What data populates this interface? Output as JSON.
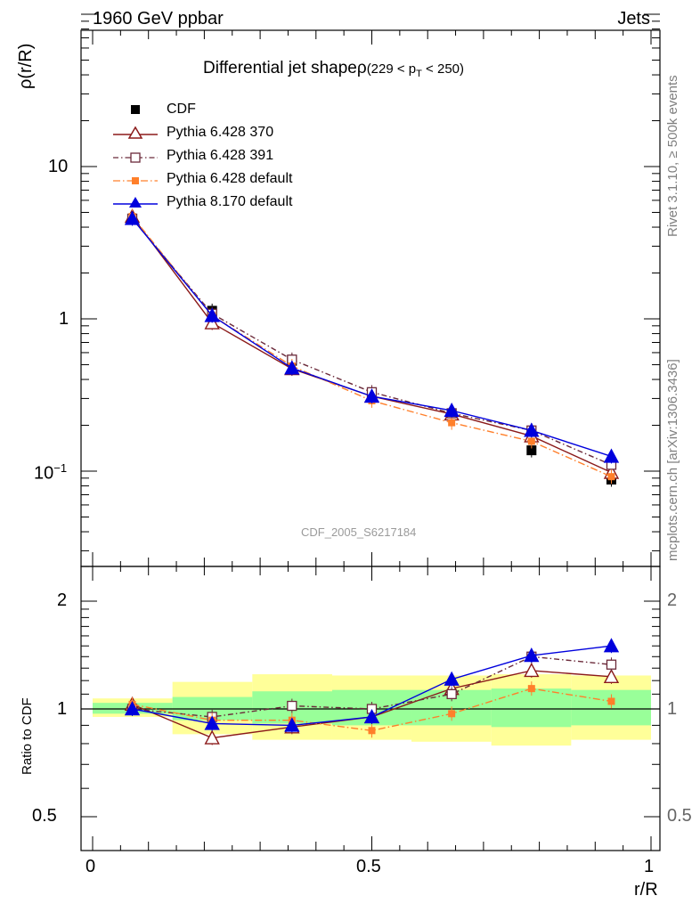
{
  "header": {
    "energy_label": "1960 GeV ppbar",
    "process_label": "Jets"
  },
  "side_labels": {
    "rivet": "Rivet 3.1.10, ≥ 500k events",
    "mcplots": "mcplots.cern.ch [arXiv:1306.3436]"
  },
  "main_title": {
    "prefix": "Differential jet shapeρ",
    "range_open": "(229 < p",
    "range_sub": "T",
    "range_close": " < 250)"
  },
  "analysis_id": "CDF_2005_S6217184",
  "axes": {
    "upper_ylabel": "ρ(r/R)",
    "lower_ylabel": "Ratio to CDF",
    "xlabel": "r/R",
    "upper_ticks": [
      "10",
      "1"
    ],
    "upper_tick_neg": {
      "base": "10",
      "exp": "−1"
    },
    "lower_ticks_left": [
      "2",
      "1",
      "0.5"
    ],
    "lower_ticks_right": [
      "2",
      "1",
      "0.5"
    ],
    "x_ticks": [
      "0",
      "0.5",
      "1"
    ]
  },
  "colors": {
    "cdf": "#000000",
    "py370": "#8b1a1a",
    "py391": "#6b2a3a",
    "pydef": "#ff7f2a",
    "py8": "#0000dd",
    "band_yellow": "#ffff99",
    "band_green": "#99ff99"
  },
  "chart_data": {
    "type": "line",
    "xlabel": "r/R",
    "x": [
      0.071,
      0.214,
      0.357,
      0.5,
      0.643,
      0.786,
      0.929
    ],
    "bins": [
      [
        0.0,
        0.143
      ],
      [
        0.143,
        0.286
      ],
      [
        0.286,
        0.429
      ],
      [
        0.429,
        0.571
      ],
      [
        0.571,
        0.714
      ],
      [
        0.714,
        0.857
      ],
      [
        0.857,
        1.0
      ]
    ],
    "upper": {
      "ylabel": "ρ(r/R)",
      "yscale": "log",
      "ylim": [
        0.027,
        100
      ],
      "series": [
        {
          "name": "CDF",
          "values": [
            4.55,
            1.13,
            0.53,
            0.325,
            0.232,
            0.137,
            0.088
          ],
          "marker": "square-filled"
        },
        {
          "name": "Pythia 6.428 370",
          "values": [
            4.7,
            0.94,
            0.47,
            0.31,
            0.237,
            0.17,
            0.098
          ],
          "marker": "triangle-open"
        },
        {
          "name": "Pythia 6.428 391",
          "values": [
            4.55,
            1.08,
            0.54,
            0.33,
            0.24,
            0.185,
            0.11
          ],
          "marker": "square-open"
        },
        {
          "name": "Pythia 6.428 default",
          "values": [
            4.7,
            1.05,
            0.49,
            0.29,
            0.208,
            0.157,
            0.092
          ],
          "marker": "square-filled-small"
        },
        {
          "name": "Pythia 8.170 default",
          "values": [
            4.55,
            1.05,
            0.475,
            0.31,
            0.25,
            0.185,
            0.125
          ],
          "marker": "triangle-filled"
        }
      ]
    },
    "lower": {
      "ylabel": "Ratio to CDF",
      "yscale": "log",
      "ylim": [
        0.4,
        2.55
      ],
      "reference": 1,
      "band_yellow": [
        [
          0.95,
          1.07
        ],
        [
          0.85,
          1.19
        ],
        [
          0.82,
          1.25
        ],
        [
          0.82,
          1.24
        ],
        [
          0.81,
          1.24
        ],
        [
          0.79,
          1.25
        ],
        [
          0.82,
          1.24
        ]
      ],
      "band_green": [
        [
          0.97,
          1.04
        ],
        [
          0.93,
          1.08
        ],
        [
          0.91,
          1.12
        ],
        [
          0.9,
          1.13
        ],
        [
          0.9,
          1.13
        ],
        [
          0.89,
          1.14
        ],
        [
          0.9,
          1.13
        ]
      ],
      "series": [
        {
          "name": "Pythia 6.428 370",
          "values": [
            1.03,
            0.83,
            0.89,
            0.95,
            1.14,
            1.28,
            1.23
          ]
        },
        {
          "name": "Pythia 6.428 391",
          "values": [
            1.0,
            0.95,
            1.02,
            1.0,
            1.1,
            1.4,
            1.33
          ]
        },
        {
          "name": "Pythia 6.428 default",
          "values": [
            1.03,
            0.93,
            0.93,
            0.87,
            0.97,
            1.14,
            1.05
          ]
        },
        {
          "name": "Pythia 8.170 default",
          "values": [
            1.0,
            0.91,
            0.9,
            0.95,
            1.21,
            1.41,
            1.5
          ]
        }
      ]
    }
  }
}
